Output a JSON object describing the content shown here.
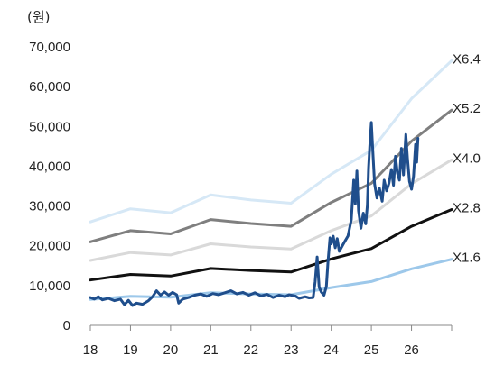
{
  "chart_data": {
    "type": "line",
    "unit_label": "(원)",
    "title": "",
    "xlabel": "",
    "ylabel": "",
    "x_ticks": [
      "18",
      "19",
      "20",
      "21",
      "22",
      "23",
      "24",
      "25",
      "26"
    ],
    "y_ticks": [
      "0",
      "10,000",
      "20,000",
      "30,000",
      "40,000",
      "50,000",
      "60,000",
      "70,000"
    ],
    "xlim": [
      2018,
      2027
    ],
    "ylim": [
      0,
      70000
    ],
    "grid": false,
    "legend": "none",
    "series": [
      {
        "name": "X6.4",
        "color": "#d6e8f6",
        "points": [
          [
            2018,
            26000
          ],
          [
            2019,
            29300
          ],
          [
            2020,
            28300
          ],
          [
            2021,
            32800
          ],
          [
            2022,
            31500
          ],
          [
            2023,
            30700
          ],
          [
            2024,
            38000
          ],
          [
            2025,
            44000
          ],
          [
            2026,
            57000
          ],
          [
            2027,
            66500
          ]
        ]
      },
      {
        "name": "X5.2",
        "color": "#7f7f7f",
        "points": [
          [
            2018,
            21000
          ],
          [
            2019,
            23800
          ],
          [
            2020,
            23000
          ],
          [
            2021,
            26600
          ],
          [
            2022,
            25600
          ],
          [
            2023,
            24900
          ],
          [
            2024,
            30900
          ],
          [
            2025,
            35700
          ],
          [
            2026,
            46300
          ],
          [
            2027,
            54100
          ]
        ]
      },
      {
        "name": "X4.0",
        "color": "#d9d9d9",
        "points": [
          [
            2018,
            16300
          ],
          [
            2019,
            18300
          ],
          [
            2020,
            17700
          ],
          [
            2021,
            20500
          ],
          [
            2022,
            19700
          ],
          [
            2023,
            19200
          ],
          [
            2024,
            23800
          ],
          [
            2025,
            27500
          ],
          [
            2026,
            35600
          ],
          [
            2027,
            41600
          ]
        ]
      },
      {
        "name": "X2.8",
        "color": "#111111",
        "points": [
          [
            2018,
            11400
          ],
          [
            2019,
            12800
          ],
          [
            2020,
            12400
          ],
          [
            2021,
            14300
          ],
          [
            2022,
            13800
          ],
          [
            2023,
            13400
          ],
          [
            2024,
            16700
          ],
          [
            2025,
            19300
          ],
          [
            2026,
            24900
          ],
          [
            2027,
            29100
          ]
        ]
      },
      {
        "name": "X1.6",
        "color": "#9dc8ea",
        "points": [
          [
            2018,
            6500
          ],
          [
            2019,
            7300
          ],
          [
            2020,
            7100
          ],
          [
            2021,
            8200
          ],
          [
            2022,
            7900
          ],
          [
            2023,
            7700
          ],
          [
            2024,
            9500
          ],
          [
            2025,
            11000
          ],
          [
            2026,
            14200
          ],
          [
            2027,
            16600
          ]
        ]
      },
      {
        "name": "",
        "color": "#1f4e8c",
        "points": [
          [
            2018.0,
            7000
          ],
          [
            2018.1,
            6600
          ],
          [
            2018.2,
            7200
          ],
          [
            2018.3,
            6400
          ],
          [
            2018.45,
            6800
          ],
          [
            2018.6,
            6200
          ],
          [
            2018.75,
            6600
          ],
          [
            2018.85,
            5200
          ],
          [
            2018.95,
            6300
          ],
          [
            2019.05,
            5000
          ],
          [
            2019.15,
            5600
          ],
          [
            2019.3,
            5300
          ],
          [
            2019.45,
            6200
          ],
          [
            2019.55,
            7200
          ],
          [
            2019.65,
            8700
          ],
          [
            2019.75,
            7600
          ],
          [
            2019.85,
            8400
          ],
          [
            2019.95,
            7600
          ],
          [
            2020.05,
            8300
          ],
          [
            2020.15,
            7700
          ],
          [
            2020.2,
            5600
          ],
          [
            2020.3,
            6600
          ],
          [
            2020.45,
            7000
          ],
          [
            2020.6,
            7600
          ],
          [
            2020.75,
            7900
          ],
          [
            2020.9,
            7300
          ],
          [
            2021.05,
            8000
          ],
          [
            2021.2,
            7700
          ],
          [
            2021.35,
            8200
          ],
          [
            2021.5,
            8700
          ],
          [
            2021.65,
            7900
          ],
          [
            2021.8,
            8300
          ],
          [
            2021.95,
            7600
          ],
          [
            2022.1,
            8200
          ],
          [
            2022.25,
            7400
          ],
          [
            2022.4,
            7800
          ],
          [
            2022.55,
            7000
          ],
          [
            2022.7,
            7600
          ],
          [
            2022.85,
            7200
          ],
          [
            2022.95,
            7700
          ],
          [
            2023.1,
            7400
          ],
          [
            2023.2,
            6800
          ],
          [
            2023.35,
            7200
          ],
          [
            2023.45,
            6900
          ],
          [
            2023.55,
            7000
          ],
          [
            2023.6,
            11000
          ],
          [
            2023.65,
            17200
          ],
          [
            2023.7,
            9600
          ],
          [
            2023.75,
            8400
          ],
          [
            2023.82,
            7600
          ],
          [
            2023.88,
            9800
          ],
          [
            2023.92,
            16000
          ],
          [
            2023.97,
            22000
          ],
          [
            2024.0,
            20500
          ],
          [
            2024.05,
            22400
          ],
          [
            2024.1,
            19500
          ],
          [
            2024.15,
            21800
          ],
          [
            2024.2,
            18600
          ],
          [
            2024.3,
            20400
          ],
          [
            2024.42,
            22500
          ],
          [
            2024.5,
            26500
          ],
          [
            2024.56,
            36500
          ],
          [
            2024.6,
            30500
          ],
          [
            2024.64,
            38800
          ],
          [
            2024.68,
            28800
          ],
          [
            2024.74,
            24400
          ],
          [
            2024.8,
            28200
          ],
          [
            2024.86,
            25500
          ],
          [
            2024.9,
            30200
          ],
          [
            2024.93,
            39500
          ],
          [
            2024.96,
            45000
          ],
          [
            2025.0,
            51000
          ],
          [
            2025.04,
            43000
          ],
          [
            2025.08,
            35500
          ],
          [
            2025.14,
            32000
          ],
          [
            2025.2,
            34500
          ],
          [
            2025.27,
            31200
          ],
          [
            2025.32,
            36500
          ],
          [
            2025.38,
            33800
          ],
          [
            2025.44,
            35800
          ],
          [
            2025.5,
            39200
          ],
          [
            2025.55,
            35200
          ],
          [
            2025.6,
            42500
          ],
          [
            2025.65,
            38200
          ],
          [
            2025.7,
            36500
          ],
          [
            2025.75,
            44500
          ],
          [
            2025.8,
            37800
          ],
          [
            2025.86,
            48000
          ],
          [
            2025.9,
            42000
          ],
          [
            2025.95,
            36200
          ],
          [
            2026.0,
            34200
          ],
          [
            2026.05,
            37500
          ],
          [
            2026.1,
            45500
          ],
          [
            2026.13,
            41000
          ],
          [
            2026.16,
            47000
          ]
        ]
      }
    ]
  }
}
